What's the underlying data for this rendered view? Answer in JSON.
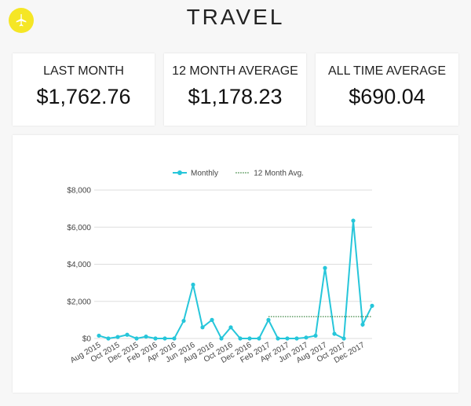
{
  "header": {
    "title": "TRAVEL"
  },
  "cards": [
    {
      "label": "LAST MONTH",
      "value": "$1,762.76"
    },
    {
      "label": "12 MONTH AVERAGE",
      "value": "$1,178.23"
    },
    {
      "label": "ALL TIME AVERAGE",
      "value": "$690.04"
    }
  ],
  "chart_data": {
    "type": "line",
    "categories": [
      "Aug 2015",
      null,
      "Oct 2015",
      null,
      "Dec 2015",
      null,
      "Feb 2016",
      null,
      "Apr 2016",
      null,
      "Jun 2016",
      null,
      "Aug 2016",
      null,
      "Oct 2016",
      null,
      "Dec 2016",
      null,
      "Feb 2017",
      null,
      "Apr 2017",
      null,
      "Jun 2017",
      null,
      "Aug 2017",
      null,
      "Oct 2017",
      null,
      "Dec 2017",
      null
    ],
    "series": [
      {
        "name": "Monthly",
        "color": "#26c6da",
        "values": [
          150,
          0,
          80,
          200,
          0,
          100,
          0,
          0,
          0,
          950,
          2900,
          600,
          1000,
          0,
          600,
          0,
          0,
          0,
          1000,
          0,
          0,
          0,
          50,
          150,
          3800,
          250,
          0,
          6350,
          750,
          1762.76
        ]
      },
      {
        "name": "12 Month Avg.",
        "color": "#2e7d32",
        "values": [
          null,
          null,
          null,
          null,
          null,
          null,
          null,
          null,
          null,
          null,
          null,
          null,
          null,
          null,
          null,
          null,
          null,
          null,
          1178.23,
          1178.23,
          1178.23,
          1178.23,
          1178.23,
          1178.23,
          1178.23,
          1178.23,
          1178.23,
          1178.23,
          1178.23,
          1178.23
        ]
      }
    ],
    "ylim": [
      0,
      8000
    ],
    "yticks": [
      {
        "value": 0,
        "label": "$0"
      },
      {
        "value": 2000,
        "label": "$2,000"
      },
      {
        "value": 4000,
        "label": "$4,000"
      },
      {
        "value": 6000,
        "label": "$6,000"
      },
      {
        "value": 8000,
        "label": "$8,000"
      }
    ],
    "grid": true,
    "legend": "top"
  }
}
